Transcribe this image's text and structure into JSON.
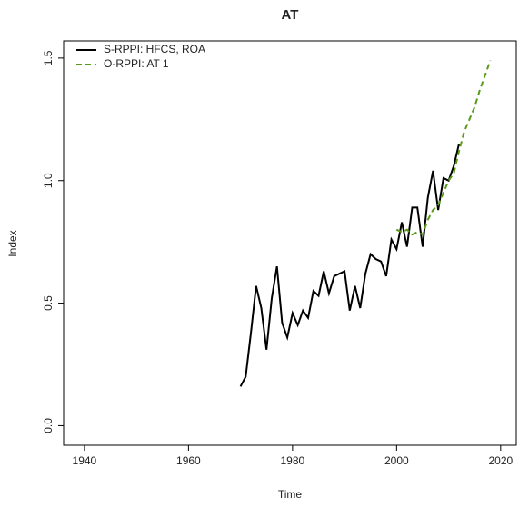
{
  "chart_data": {
    "type": "line",
    "title": "AT",
    "x_label": "Time",
    "y_label": "Index",
    "xlim": [
      1936,
      2023
    ],
    "ylim": [
      -0.08,
      1.57
    ],
    "xticks": [
      1940,
      1960,
      1980,
      2000,
      2020
    ],
    "yticks": [
      {
        "value": 0,
        "label": "0.0"
      },
      0.5,
      {
        "value": 1,
        "label": "1.0"
      },
      1.5
    ],
    "legend": "topleft",
    "series": [
      {
        "name": "S-RPPI: HFCS, ROA",
        "color": "#000000",
        "linestyle": "solid",
        "x": [
          1970,
          1971,
          1972,
          1973,
          1974,
          1975,
          1976,
          1977,
          1978,
          1979,
          1980,
          1981,
          1982,
          1983,
          1984,
          1985,
          1986,
          1987,
          1988,
          1989,
          1990,
          1991,
          1992,
          1993,
          1994,
          1995,
          1996,
          1997,
          1998,
          1999,
          2000,
          2001,
          2002,
          2003,
          2004,
          2005,
          2006,
          2007,
          2008,
          2009,
          2010,
          2011,
          2012
        ],
        "values": [
          0.16,
          0.2,
          0.38,
          0.57,
          0.48,
          0.31,
          0.52,
          0.65,
          0.42,
          0.36,
          0.46,
          0.41,
          0.47,
          0.44,
          0.55,
          0.53,
          0.63,
          0.54,
          0.61,
          0.62,
          0.63,
          0.47,
          0.57,
          0.48,
          0.62,
          0.7,
          0.68,
          0.67,
          0.61,
          0.76,
          0.72,
          0.83,
          0.73,
          0.89,
          0.89,
          0.73,
          0.93,
          1.04,
          0.88,
          1.01,
          1.0,
          1.06,
          1.15
        ]
      },
      {
        "name": "O-RPPI: AT 1",
        "color": "#5a9a1a",
        "linestyle": "dashed",
        "x": [
          2000,
          2001,
          2002,
          2003,
          2004,
          2005,
          2006,
          2007,
          2008,
          2009,
          2010,
          2011,
          2012,
          2013,
          2014,
          2015,
          2016,
          2017,
          2018
        ],
        "values": [
          0.8,
          0.79,
          0.8,
          0.78,
          0.79,
          0.78,
          0.84,
          0.88,
          0.9,
          0.95,
          1.0,
          1.03,
          1.12,
          1.2,
          1.25,
          1.3,
          1.37,
          1.43,
          1.49
        ]
      }
    ]
  }
}
